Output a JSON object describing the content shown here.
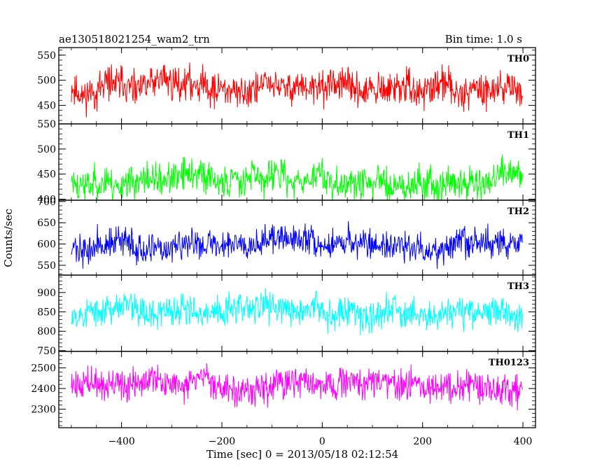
{
  "header": {
    "title": "ae130518021254_wam2_trn",
    "bin_time": "Bin time: 1.0 s"
  },
  "chart_data": {
    "type": "line",
    "title": "ae130518021254_wam2_trn",
    "subtitle": "Bin time: 1.0 s",
    "xlabel": "Time [sec] 0 = 2013/05/18 02:12:54",
    "ylabel": "Counts/sec",
    "xlim": [
      -525,
      425
    ],
    "x_ticks": [
      -400,
      -200,
      0,
      200,
      400
    ],
    "x_tick_labels": [
      "−400",
      "−200",
      "0",
      "200",
      "400"
    ],
    "x_range_data": [
      -500,
      399
    ],
    "bin_seconds": 1.0,
    "grid": false,
    "panels": [
      {
        "name": "TH0",
        "color": "#ff0000",
        "ylim": [
          413,
          565
        ],
        "yticks": [
          450,
          500,
          550
        ],
        "mean": 485,
        "spread": 50,
        "seed": 11
      },
      {
        "name": "TH1",
        "color": "#00ff00",
        "ylim": [
          398,
          550
        ],
        "yticks": [
          400,
          450,
          500,
          550
        ],
        "mean": 438,
        "spread": 48,
        "seed": 23
      },
      {
        "name": "TH2",
        "color": "#0000ff",
        "ylim": [
          527,
          703
        ],
        "yticks": [
          550,
          600,
          650,
          700
        ],
        "mean": 600,
        "spread": 52,
        "seed": 37
      },
      {
        "name": "TH3",
        "color": "#00ffff",
        "ylim": [
          748,
          945
        ],
        "yticks": [
          750,
          800,
          850,
          900
        ],
        "mean": 853,
        "spread": 60,
        "seed": 53
      },
      {
        "name": "TH0123",
        "color": "#ff00ff",
        "ylim": [
          2210,
          2580
        ],
        "yticks": [
          2300,
          2400,
          2500
        ],
        "mean": 2410,
        "spread": 110,
        "seed": 71
      }
    ]
  }
}
